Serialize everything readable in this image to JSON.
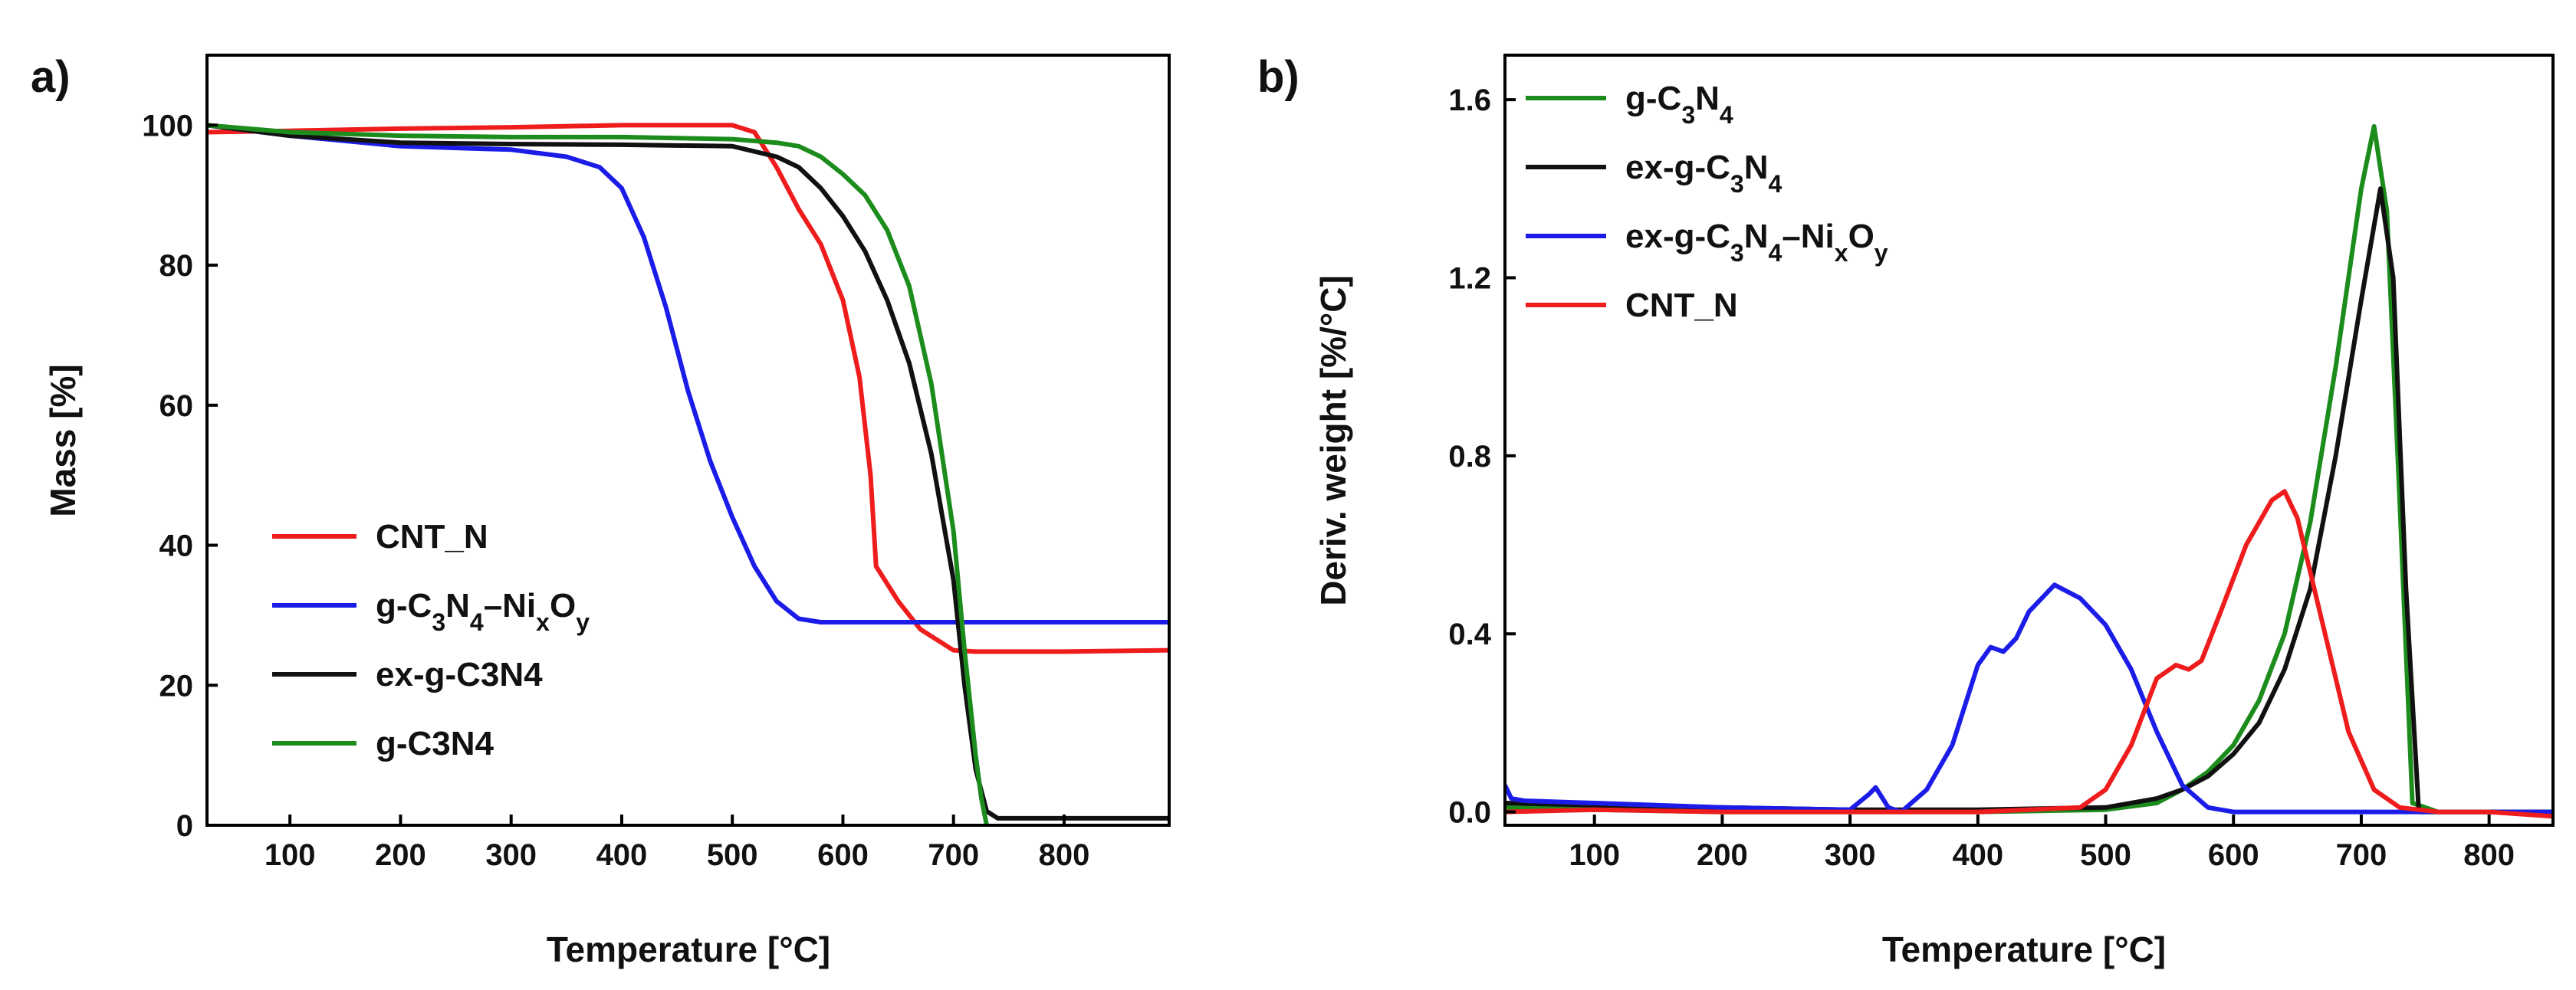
{
  "chart_data": [
    {
      "panel": "a)",
      "type": "line",
      "xlabel": "Temperature [°C]",
      "ylabel": "Mass [%]",
      "xlim": [
        25,
        895
      ],
      "ylim": [
        0,
        110
      ],
      "x_ticks": [
        100,
        200,
        300,
        400,
        500,
        600,
        700,
        800
      ],
      "y_ticks": [
        0,
        20,
        40,
        60,
        80,
        100
      ],
      "legend_position": "bottom-left",
      "series": [
        {
          "name": "CNT_N",
          "color": "#ee1c1c",
          "x": [
            25,
            100,
            200,
            300,
            400,
            500,
            520,
            540,
            560,
            580,
            600,
            615,
            625,
            630,
            650,
            670,
            690,
            700,
            720,
            750,
            800,
            895
          ],
          "y": [
            99,
            99.2,
            99.5,
            99.7,
            100,
            100,
            99,
            94,
            88,
            83,
            75,
            64,
            50,
            37,
            32,
            28,
            26,
            25,
            24.8,
            24.8,
            24.8,
            25
          ]
        },
        {
          "name": "g-C3N4–NixOy",
          "legend_html": "g-C<tspan baseline-shift=\"sub\" font-size=\"32\">3</tspan>N<tspan baseline-shift=\"sub\" font-size=\"32\">4</tspan>–Ni<tspan baseline-shift=\"sub\" font-size=\"32\">x</tspan>O<tspan baseline-shift=\"sub\" font-size=\"32\">y</tspan>",
          "color": "#1c1ce8",
          "x": [
            25,
            100,
            200,
            300,
            350,
            380,
            400,
            420,
            440,
            460,
            480,
            500,
            520,
            540,
            560,
            580,
            600,
            700,
            800,
            895
          ],
          "y": [
            100,
            98.5,
            97,
            96.5,
            95.5,
            94,
            91,
            84,
            74,
            62,
            52,
            44,
            37,
            32,
            29.5,
            29,
            29,
            29,
            29,
            29
          ]
        },
        {
          "name": "ex-g-C3N4",
          "color": "#111111",
          "x": [
            25,
            100,
            200,
            300,
            400,
            500,
            540,
            560,
            580,
            600,
            620,
            640,
            660,
            680,
            700,
            710,
            720,
            730,
            740,
            800,
            895
          ],
          "y": [
            100,
            98.5,
            97.5,
            97.3,
            97.2,
            97,
            95.5,
            94,
            91,
            87,
            82,
            75,
            66,
            53,
            35,
            20,
            8,
            2,
            1,
            1,
            1
          ]
        },
        {
          "name": "g-C3N4",
          "color": "#1c8c1c",
          "x": [
            25,
            100,
            200,
            300,
            400,
            500,
            540,
            560,
            580,
            600,
            620,
            640,
            660,
            680,
            700,
            710,
            720,
            725,
            730
          ],
          "y": [
            100,
            99,
            98.5,
            98.3,
            98.3,
            98,
            97.5,
            97,
            95.5,
            93,
            90,
            85,
            77,
            63,
            42,
            25,
            10,
            4,
            0
          ]
        }
      ]
    },
    {
      "panel": "b)",
      "type": "line",
      "xlabel": "Temperature [°C]",
      "ylabel": "Deriv. weight [%/°C]",
      "xlim": [
        30,
        850
      ],
      "ylim": [
        -0.03,
        1.7
      ],
      "x_ticks": [
        100,
        200,
        300,
        400,
        500,
        600,
        700,
        800
      ],
      "y_ticks": [
        0.0,
        0.4,
        0.8,
        1.2,
        1.6
      ],
      "y_tick_labels": [
        "0.0",
        "0.4",
        "0.8",
        "1.2",
        "1.6"
      ],
      "legend_position": "top-left",
      "series": [
        {
          "name": "g-C3N4",
          "legend_html": "g-C<tspan baseline-shift=\"sub\" font-size=\"32\">3</tspan>N<tspan baseline-shift=\"sub\" font-size=\"32\">4</tspan>",
          "color": "#1c8c1c",
          "x": [
            30,
            100,
            200,
            300,
            400,
            500,
            540,
            560,
            580,
            600,
            620,
            640,
            660,
            680,
            700,
            710,
            720,
            730,
            740,
            760,
            800,
            850
          ],
          "y": [
            0.01,
            0.005,
            0.0,
            0.0,
            0.0,
            0.005,
            0.02,
            0.05,
            0.09,
            0.15,
            0.25,
            0.4,
            0.65,
            1.0,
            1.4,
            1.54,
            1.35,
            0.7,
            0.02,
            0.0,
            0.0,
            0.0
          ]
        },
        {
          "name": "ex-g-C3N4",
          "legend_html": "ex-g-C<tspan baseline-shift=\"sub\" font-size=\"32\">3</tspan>N<tspan baseline-shift=\"sub\" font-size=\"32\">4</tspan>",
          "color": "#111111",
          "x": [
            30,
            100,
            200,
            300,
            400,
            500,
            540,
            560,
            580,
            600,
            620,
            640,
            660,
            680,
            700,
            715,
            725,
            735,
            745,
            800,
            850
          ],
          "y": [
            0.02,
            0.015,
            0.01,
            0.005,
            0.005,
            0.01,
            0.03,
            0.05,
            0.08,
            0.13,
            0.2,
            0.32,
            0.5,
            0.8,
            1.15,
            1.4,
            1.2,
            0.5,
            0.0,
            0.0,
            0.0
          ]
        },
        {
          "name": "ex-g-C3N4–NixOy",
          "legend_html": "ex-g-C<tspan baseline-shift=\"sub\" font-size=\"32\">3</tspan>N<tspan baseline-shift=\"sub\" font-size=\"32\">4</tspan>–Ni<tspan baseline-shift=\"sub\" font-size=\"32\">x</tspan>O<tspan baseline-shift=\"sub\" font-size=\"32\">y</tspan>",
          "color": "#1c1ce8",
          "x": [
            30,
            35,
            45,
            100,
            200,
            300,
            315,
            320,
            330,
            340,
            360,
            380,
            400,
            410,
            420,
            430,
            440,
            460,
            480,
            500,
            520,
            540,
            560,
            580,
            600,
            650,
            700,
            800,
            850
          ],
          "y": [
            0.06,
            0.03,
            0.025,
            0.02,
            0.01,
            0.005,
            0.04,
            0.055,
            0.01,
            0.0,
            0.05,
            0.15,
            0.33,
            0.37,
            0.36,
            0.39,
            0.45,
            0.51,
            0.48,
            0.42,
            0.32,
            0.18,
            0.06,
            0.01,
            0.0,
            0.0,
            0.0,
            0.0,
            0.0
          ]
        },
        {
          "name": "CNT_N",
          "color": "#ee1c1c",
          "x": [
            30,
            100,
            200,
            300,
            400,
            480,
            500,
            520,
            540,
            555,
            565,
            575,
            590,
            610,
            630,
            640,
            650,
            670,
            690,
            710,
            730,
            760,
            800,
            850
          ],
          "y": [
            0.0,
            0.005,
            0.0,
            0.0,
            0.0,
            0.01,
            0.05,
            0.15,
            0.3,
            0.33,
            0.32,
            0.34,
            0.45,
            0.6,
            0.7,
            0.72,
            0.66,
            0.42,
            0.18,
            0.05,
            0.01,
            0.0,
            0.0,
            -0.01
          ]
        }
      ]
    }
  ]
}
